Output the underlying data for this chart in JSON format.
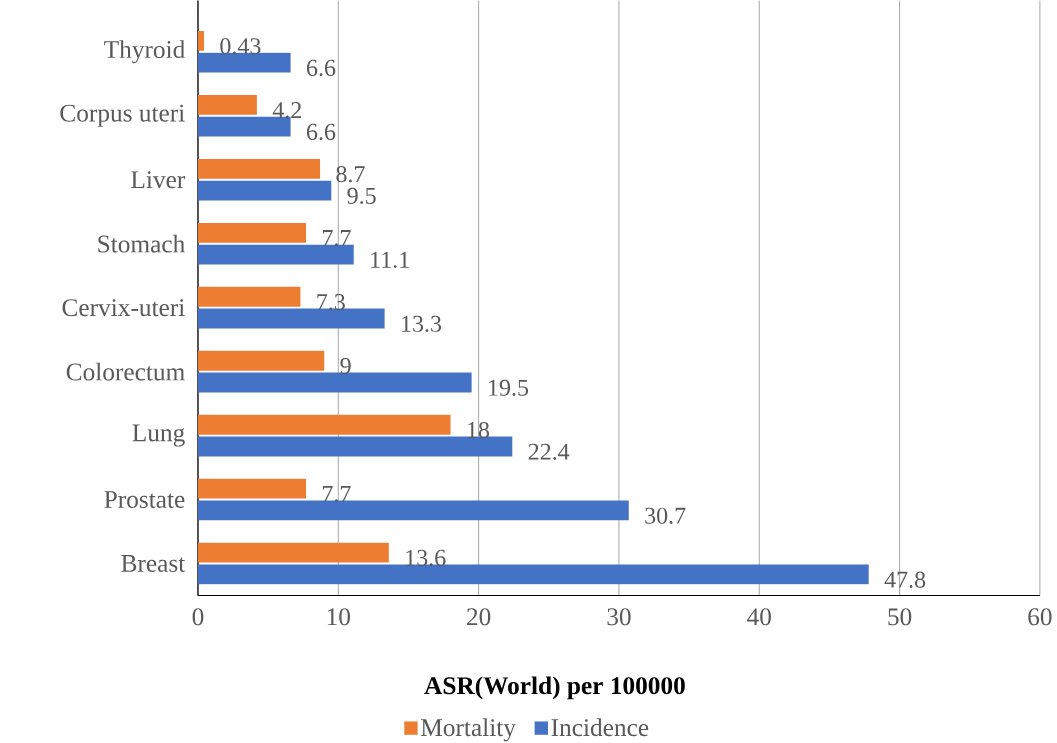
{
  "chart_data": {
    "type": "bar",
    "orientation": "horizontal",
    "xlabel": "ASR(World) per 100000",
    "categories": [
      "Thyroid",
      "Corpus uteri",
      "Liver",
      "Stomach",
      "Cervix-uteri",
      "Colorectum",
      "Lung",
      "Prostate",
      "Breast"
    ],
    "series": [
      {
        "name": "Mortality",
        "color": "#ed7d31",
        "values": [
          0.43,
          4.2,
          8.7,
          7.7,
          7.3,
          9,
          18,
          7.7,
          13.6
        ]
      },
      {
        "name": "Incidence",
        "color": "#4472c4",
        "values": [
          6.6,
          6.6,
          9.5,
          11.1,
          13.3,
          19.5,
          22.4,
          30.7,
          47.8
        ]
      }
    ],
    "xlim": [
      0,
      60
    ],
    "xticks": [
      0,
      10,
      20,
      30,
      40,
      50,
      60
    ],
    "grid": "x",
    "legend": "bottom",
    "data_labels": true
  }
}
